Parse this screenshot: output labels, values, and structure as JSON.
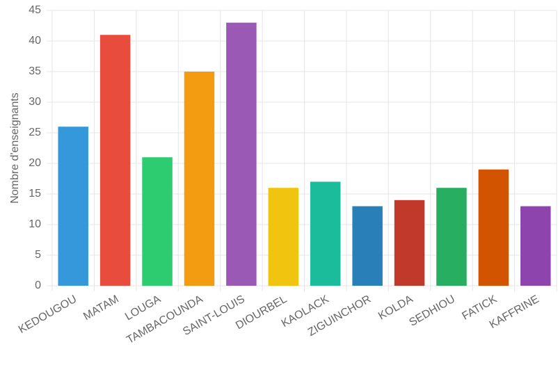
{
  "chart_data": {
    "type": "bar",
    "y_label": "Nombre d'enseignants",
    "categories": [
      "KEDOUGOU",
      "MATAM",
      "LOUGA",
      "TAMBACOUNDA",
      "SAINT-LOUIS",
      "DIOURBEL",
      "KAOLACK",
      "ZIGUINCHOR",
      "KOLDA",
      "SEDHIOU",
      "FATICK",
      "KAFFRINE"
    ],
    "values": [
      26,
      41,
      21,
      35,
      43,
      16,
      17,
      13,
      14,
      16,
      19,
      13
    ],
    "colors": [
      "#3498db",
      "#e74c3c",
      "#2ecc71",
      "#f39c12",
      "#9b59b6",
      "#f1c40f",
      "#1abc9c",
      "#2980b9",
      "#c0392b",
      "#27ae60",
      "#d35400",
      "#8e44ad"
    ],
    "ylim": [
      0,
      45
    ],
    "yticks": [
      0,
      5,
      10,
      15,
      20,
      25,
      30,
      35,
      40,
      45
    ],
    "grid": true
  }
}
